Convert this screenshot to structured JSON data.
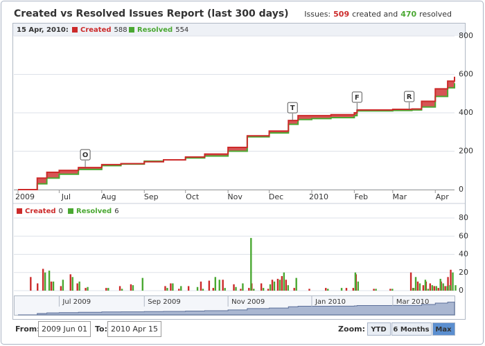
{
  "header": {
    "title": "Created vs Resolved Issues Report (last 300 days)",
    "summary": {
      "label": "Issues:",
      "created": 509,
      "created_text": "created and",
      "resolved": 470,
      "resolved_text": "resolved"
    }
  },
  "chart_data": [
    {
      "type": "line",
      "step": true,
      "legend_date": "15 Apr, 2010:",
      "x": [
        "2009-06-01",
        "2009-06-08",
        "2009-06-15",
        "2009-06-22",
        "2009-07-01",
        "2009-07-15",
        "2009-08-01",
        "2009-08-15",
        "2009-09-01",
        "2009-09-15",
        "2009-10-01",
        "2009-10-15",
        "2009-11-01",
        "2009-11-15",
        "2009-12-01",
        "2009-12-15",
        "2009-12-22",
        "2010-01-01",
        "2010-01-15",
        "2010-02-01",
        "2010-02-03",
        "2010-03-01",
        "2010-03-15",
        "2010-03-22",
        "2010-04-01",
        "2010-04-10",
        "2010-04-15"
      ],
      "series": [
        {
          "name": "Created",
          "color": "#cc2a2a",
          "values": [
            0,
            0,
            60,
            90,
            100,
            115,
            130,
            135,
            145,
            155,
            170,
            185,
            220,
            280,
            305,
            360,
            385,
            385,
            390,
            400,
            415,
            418,
            420,
            460,
            525,
            565,
            588
          ]
        },
        {
          "name": "Resolved",
          "color": "#4aa832",
          "values": [
            0,
            0,
            30,
            60,
            80,
            105,
            125,
            133,
            148,
            155,
            165,
            175,
            200,
            275,
            295,
            340,
            365,
            370,
            375,
            385,
            410,
            412,
            415,
            430,
            485,
            530,
            554
          ]
        }
      ],
      "xlim": [
        "2009-06-01",
        "2010-04-15"
      ],
      "xticks": [
        {
          "value": "2009-06-01",
          "label": "2009"
        },
        {
          "value": "2009-07-01",
          "label": "Jul"
        },
        {
          "value": "2009-08-01",
          "label": "Aug"
        },
        {
          "value": "2009-09-01",
          "label": "Sep"
        },
        {
          "value": "2009-10-01",
          "label": "Oct"
        },
        {
          "value": "2009-11-01",
          "label": "Nov"
        },
        {
          "value": "2009-12-01",
          "label": "Dec"
        },
        {
          "value": "2010-01-01",
          "label": "2010"
        },
        {
          "value": "2010-02-01",
          "label": "Feb"
        },
        {
          "value": "2010-03-01",
          "label": "Mar"
        },
        {
          "value": "2010-04-01",
          "label": "Apr"
        }
      ],
      "ylim": [
        0,
        800
      ],
      "yticks": [
        0,
        200,
        400,
        600,
        800
      ],
      "grid": true,
      "flags": [
        {
          "x": "2009-07-20",
          "label": "O"
        },
        {
          "x": "2009-12-18",
          "label": "T"
        },
        {
          "x": "2010-02-03",
          "label": "F"
        },
        {
          "x": "2010-03-13",
          "label": "R"
        }
      ]
    },
    {
      "type": "bar",
      "x": [
        "2009-06-11",
        "2009-06-16",
        "2009-06-20",
        "2009-06-23",
        "2009-06-26",
        "2009-07-03",
        "2009-07-10",
        "2009-07-15",
        "2009-07-21",
        "2009-08-05",
        "2009-08-15",
        "2009-08-23",
        "2009-08-30",
        "2009-09-17",
        "2009-09-21",
        "2009-09-27",
        "2009-10-04",
        "2009-10-09",
        "2009-10-13",
        "2009-10-19",
        "2009-10-22",
        "2009-10-25",
        "2009-10-29",
        "2009-11-06",
        "2009-11-11",
        "2009-11-17",
        "2009-11-19",
        "2009-11-26",
        "2009-12-01",
        "2009-12-04",
        "2009-12-08",
        "2009-12-11",
        "2009-12-14",
        "2009-12-20",
        "2009-12-31",
        "2010-01-12",
        "2010-01-22",
        "2010-01-27",
        "2010-02-01",
        "2010-02-03",
        "2010-02-16",
        "2010-02-28",
        "2010-03-15",
        "2010-03-17",
        "2010-03-20",
        "2010-03-24",
        "2010-03-26",
        "2010-03-29",
        "2010-04-01",
        "2010-04-04",
        "2010-04-06",
        "2010-04-09",
        "2010-04-11",
        "2010-04-13",
        "2010-04-15"
      ],
      "series": [
        {
          "name": "Created",
          "color": "#cc2a2a",
          "values": [
            15,
            8,
            24,
            0,
            10,
            5,
            18,
            8,
            3,
            3,
            5,
            7,
            0,
            5,
            8,
            2,
            5,
            0,
            10,
            11,
            3,
            0,
            12,
            7,
            2,
            3,
            8,
            8,
            2,
            12,
            13,
            16,
            12,
            3,
            2,
            3,
            0,
            3,
            3,
            18,
            2,
            2,
            20,
            3,
            10,
            6,
            10,
            8,
            5,
            3,
            10,
            5,
            15,
            23,
            0
          ]
        },
        {
          "name": "Resolved",
          "color": "#4aa832",
          "values": [
            0,
            0,
            20,
            22,
            10,
            12,
            15,
            10,
            4,
            3,
            2,
            6,
            14,
            3,
            8,
            5,
            0,
            4,
            2,
            0,
            15,
            12,
            3,
            4,
            8,
            58,
            2,
            3,
            7,
            10,
            12,
            20,
            6,
            14,
            0,
            2,
            3,
            0,
            20,
            10,
            2,
            2,
            3,
            15,
            8,
            12,
            2,
            6,
            5,
            13,
            8,
            5,
            6,
            20,
            6
          ]
        }
      ],
      "xlim": [
        "2009-06-01",
        "2010-04-15"
      ],
      "ylim": [
        0,
        80
      ],
      "yticks": [
        0,
        20,
        40,
        60,
        80
      ],
      "grid": true
    }
  ],
  "navigator": {
    "xticks": [
      {
        "value": "2009-07-01",
        "label": "Jul 2009"
      },
      {
        "value": "2009-09-01",
        "label": "Sep 2009"
      },
      {
        "value": "2009-11-01",
        "label": "Nov 2009"
      },
      {
        "value": "2010-01-01",
        "label": "Jan 2010"
      },
      {
        "value": "2010-03-01",
        "label": "Mar 2010"
      }
    ]
  },
  "range": {
    "from_label": "From:",
    "from": "2009 Jun 01",
    "to_label": "To:",
    "to": "2010 Apr 15"
  },
  "zoom": {
    "label": "Zoom:",
    "buttons": [
      "YTD",
      "6 Months",
      "Max"
    ],
    "active": 2
  }
}
